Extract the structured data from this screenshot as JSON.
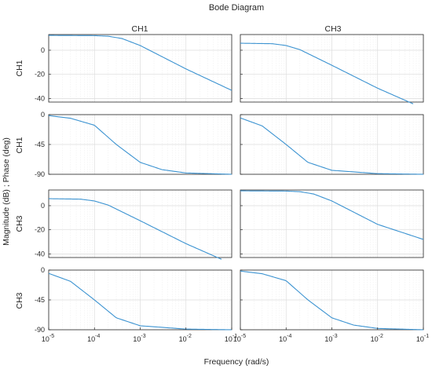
{
  "chart_data": {
    "type": "line",
    "title": "Bode Diagram",
    "xlabel": "Frequency  (rad/s)",
    "ylabel": "Magnitude (dB) ; Phase (deg)",
    "xscale": "log",
    "xlim": [
      1e-05,
      0.1
    ],
    "x_tick_bases": [
      "10",
      "10",
      "10",
      "10",
      "10"
    ],
    "x_tick_exponents": [
      "-5",
      "-4",
      "-3",
      "-2",
      "-1"
    ],
    "x_tick_values": [
      1e-05,
      0.0001,
      0.001,
      0.01,
      0.1
    ],
    "grid": true,
    "line_color": "#3c93d1",
    "columns": [
      "CH1",
      "CH3"
    ],
    "rows": [
      "CH1",
      "CH1",
      "CH3",
      "CH3"
    ],
    "row_quantity": [
      "magnitude",
      "phase",
      "magnitude",
      "phase"
    ],
    "row_ylim": [
      [
        -43,
        13
      ],
      [
        -90,
        0
      ],
      [
        -43,
        13
      ],
      [
        -90,
        0
      ]
    ],
    "row_ticks": [
      [
        "0",
        "-20",
        "-40"
      ],
      [
        "0",
        "-45",
        "-90"
      ],
      [
        "0",
        "-20",
        "-40"
      ],
      [
        "0",
        "-45",
        "-90"
      ]
    ],
    "panels": [
      {
        "row": 0,
        "col": 0,
        "output": "CH1",
        "input": "CH1",
        "quantity": "magnitude",
        "series": [
          {
            "x": [
              1e-05,
              0.0001,
              0.0002,
              0.0004,
              0.001,
              0.01,
              0.1
            ],
            "y": [
              12.3,
              12.1,
              11.6,
              9.7,
              3.9,
              -15.5,
              -33.3
            ]
          }
        ]
      },
      {
        "row": 0,
        "col": 1,
        "output": "CH3",
        "input": "CH1",
        "quantity": "magnitude",
        "series": [
          {
            "x": [
              1e-05,
              5e-05,
              0.0001,
              0.0002,
              0.001,
              0.01,
              0.06
            ],
            "y": [
              5.8,
              5.4,
              3.9,
              0.5,
              -12.5,
              -31.5,
              -44.5
            ]
          }
        ]
      },
      {
        "row": 1,
        "col": 0,
        "output": "CH1",
        "input": "CH1",
        "quantity": "phase",
        "series": [
          {
            "x": [
              1e-05,
              3e-05,
              0.0001,
              0.0003,
              0.001,
              0.003,
              0.01,
              0.1
            ],
            "y": [
              -1.5,
              -5.5,
              -16,
              -45,
              -72,
              -83,
              -88,
              -90
            ]
          }
        ]
      },
      {
        "row": 1,
        "col": 1,
        "output": "CH3",
        "input": "CH1",
        "quantity": "phase",
        "series": [
          {
            "x": [
              1e-05,
              3e-05,
              0.0001,
              0.0003,
              0.001,
              0.01,
              0.1
            ],
            "y": [
              -5,
              -17,
              -45,
              -72,
              -84,
              -89,
              -90
            ]
          }
        ]
      },
      {
        "row": 2,
        "col": 0,
        "output": "CH1",
        "input": "CH3",
        "quantity": "magnitude",
        "series": [
          {
            "x": [
              1e-05,
              5e-05,
              0.0001,
              0.0002,
              0.001,
              0.01,
              0.06
            ],
            "y": [
              5.8,
              5.4,
              3.9,
              0.5,
              -12.5,
              -31.5,
              -44.5
            ]
          }
        ]
      },
      {
        "row": 2,
        "col": 1,
        "output": "CH3",
        "input": "CH3",
        "quantity": "magnitude",
        "series": [
          {
            "x": [
              1e-05,
              0.0001,
              0.0002,
              0.0004,
              0.001,
              0.01,
              0.1
            ],
            "y": [
              12.3,
              12.1,
              11.6,
              9.7,
              3.9,
              -15.5,
              -28
            ]
          }
        ]
      },
      {
        "row": 3,
        "col": 0,
        "output": "CH1",
        "input": "CH3",
        "quantity": "phase",
        "series": [
          {
            "x": [
              1e-05,
              3e-05,
              0.0001,
              0.0003,
              0.001,
              0.01,
              0.1
            ],
            "y": [
              -5,
              -17,
              -45,
              -72,
              -84,
              -89,
              -90
            ]
          }
        ]
      },
      {
        "row": 3,
        "col": 1,
        "output": "CH3",
        "input": "CH3",
        "quantity": "phase",
        "series": [
          {
            "x": [
              1e-05,
              3e-05,
              0.0001,
              0.0003,
              0.001,
              0.003,
              0.01,
              0.1
            ],
            "y": [
              -1.5,
              -5.5,
              -16,
              -45,
              -72,
              -83,
              -88,
              -90
            ]
          }
        ]
      }
    ]
  }
}
